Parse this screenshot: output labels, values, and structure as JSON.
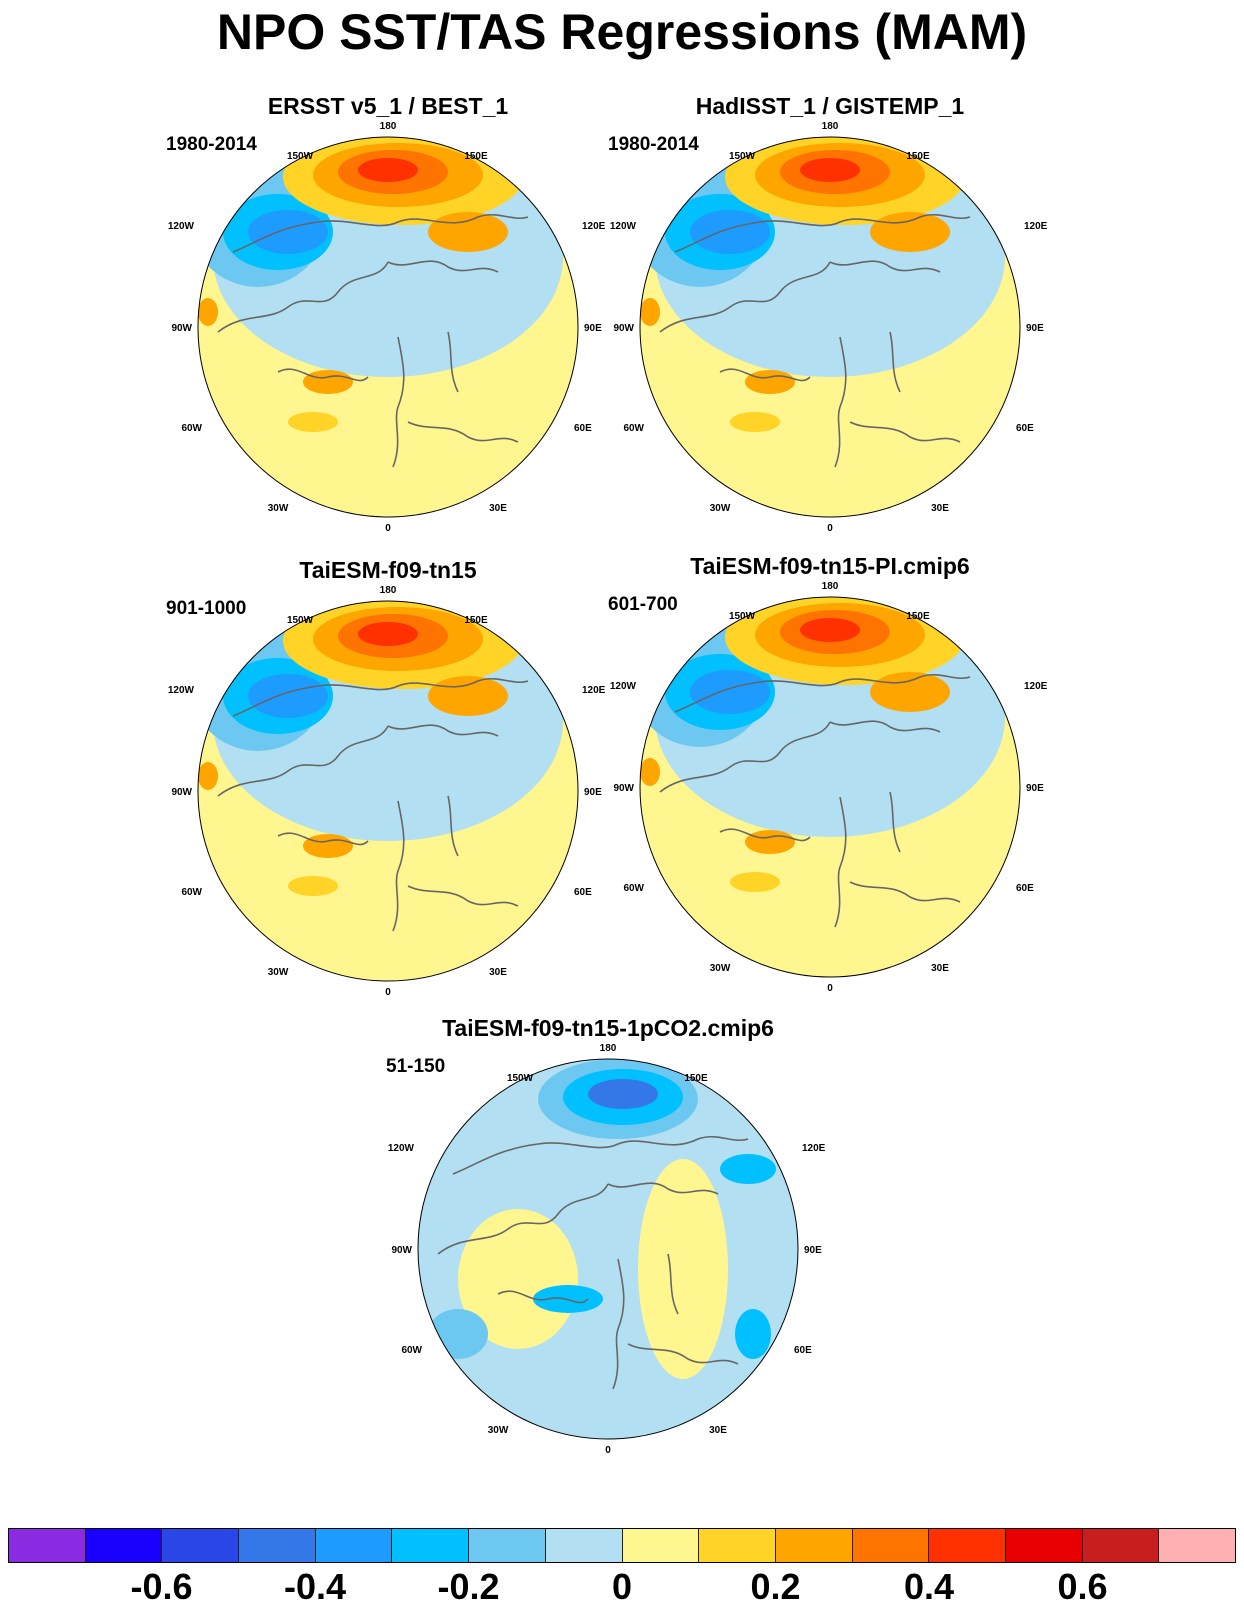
{
  "title": "NPO SST/TAS Regressions (MAM)",
  "longitude_labels": {
    "top": "180",
    "upper_left": "150W",
    "upper_right": "150E",
    "left_high": "120W",
    "right_high": "120E",
    "left_mid": "90W",
    "right_mid": "90E",
    "left_low": "60W",
    "right_low": "60E",
    "bottom_left": "30W",
    "bottom_right": "30E",
    "bottom": "0"
  },
  "panels": [
    {
      "title": "ERSST v5_1 / BEST_1",
      "period": "1980-2014",
      "pattern": "positive"
    },
    {
      "title": "HadISST_1 / GISTEMP_1",
      "period": "1980-2014",
      "pattern": "positive"
    },
    {
      "title": "TaiESM-f09-tn15",
      "period": "901-1000",
      "pattern": "positive"
    },
    {
      "title": "TaiESM-f09-tn15-PI.cmip6",
      "period": "601-700",
      "pattern": "positive"
    },
    {
      "title": "TaiESM-f09-tn15-1pCO2.cmip6",
      "period": "51-150",
      "pattern": "negative"
    }
  ],
  "colorbar": {
    "colors": [
      "#8a2be2",
      "#1a00ff",
      "#2a46e6",
      "#3377e8",
      "#1e9bff",
      "#00c0ff",
      "#6cc8f0",
      "#b2dff2",
      "#fff68f",
      "#ffd426",
      "#ffa500",
      "#ff7400",
      "#ff3100",
      "#e60000",
      "#c81e1e",
      "#ffb0b0"
    ],
    "labels": [
      "-0.6",
      "-0.4",
      "-0.2",
      "0",
      "0.2",
      "0.4",
      "0.6"
    ]
  }
}
